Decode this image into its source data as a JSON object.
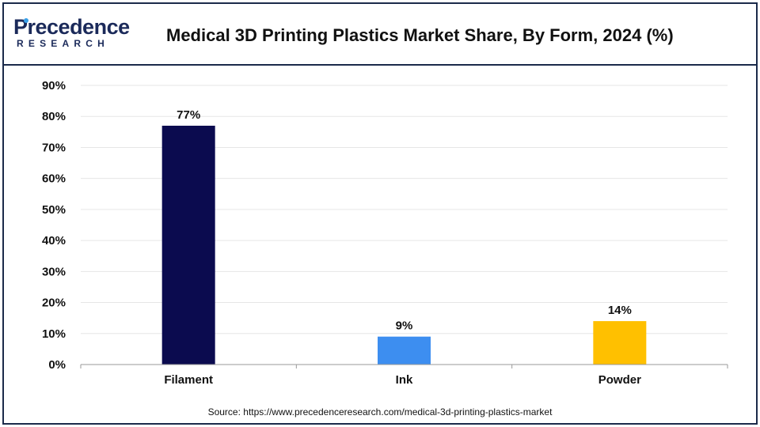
{
  "header": {
    "logo_main": "Precedence",
    "logo_sub": "RESEARCH",
    "title": "Medical 3D Printing Plastics Market Share, By Form, 2024 (%)"
  },
  "chart_data": {
    "type": "bar",
    "categories": [
      "Filament",
      "Ink",
      "Powder"
    ],
    "values": [
      77,
      9,
      14
    ],
    "data_labels": [
      "77%",
      "9%",
      "14%"
    ],
    "colors": [
      "#0b0b4f",
      "#3d8ef0",
      "#ffc000"
    ],
    "title": "Medical 3D Printing Plastics Market Share, By Form, 2024 (%)",
    "xlabel": "",
    "ylabel": "",
    "ylim": [
      0,
      90
    ],
    "y_ticks": [
      0,
      10,
      20,
      30,
      40,
      50,
      60,
      70,
      80,
      90
    ],
    "y_tick_labels": [
      "0%",
      "10%",
      "20%",
      "30%",
      "40%",
      "50%",
      "60%",
      "70%",
      "80%",
      "90%"
    ],
    "grid": true,
    "legend": "none"
  },
  "footer": {
    "source": "Source: https://www.precedenceresearch.com/medical-3d-printing-plastics-market"
  }
}
